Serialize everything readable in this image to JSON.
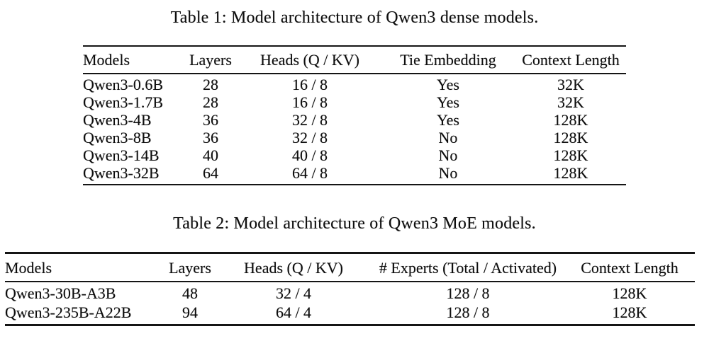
{
  "colors": {
    "background": "#ffffff",
    "text": "#0e0e0e",
    "rule": "#151515"
  },
  "tables": [
    {
      "caption": "Table 1: Model architecture of Qwen3 dense models.",
      "headers": [
        "Models",
        "Layers",
        "Heads (Q / KV)",
        "Tie Embedding",
        "Context Length"
      ],
      "rows": [
        [
          "Qwen3-0.6B",
          "28",
          "16 / 8",
          "Yes",
          "32K"
        ],
        [
          "Qwen3-1.7B",
          "28",
          "16 / 8",
          "Yes",
          "32K"
        ],
        [
          "Qwen3-4B",
          "36",
          "32 / 8",
          "Yes",
          "128K"
        ],
        [
          "Qwen3-8B",
          "36",
          "32 / 8",
          "No",
          "128K"
        ],
        [
          "Qwen3-14B",
          "40",
          "40 / 8",
          "No",
          "128K"
        ],
        [
          "Qwen3-32B",
          "64",
          "64 / 8",
          "No",
          "128K"
        ]
      ]
    },
    {
      "caption": "Table 2: Model architecture of Qwen3 MoE models.",
      "headers": [
        "Models",
        "Layers",
        "Heads (Q / KV)",
        "# Experts (Total / Activated)",
        "Context Length"
      ],
      "rows": [
        [
          "Qwen3-30B-A3B",
          "48",
          "32 / 4",
          "128 / 8",
          "128K"
        ],
        [
          "Qwen3-235B-A22B",
          "94",
          "64 / 4",
          "128 / 8",
          "128K"
        ]
      ]
    }
  ]
}
